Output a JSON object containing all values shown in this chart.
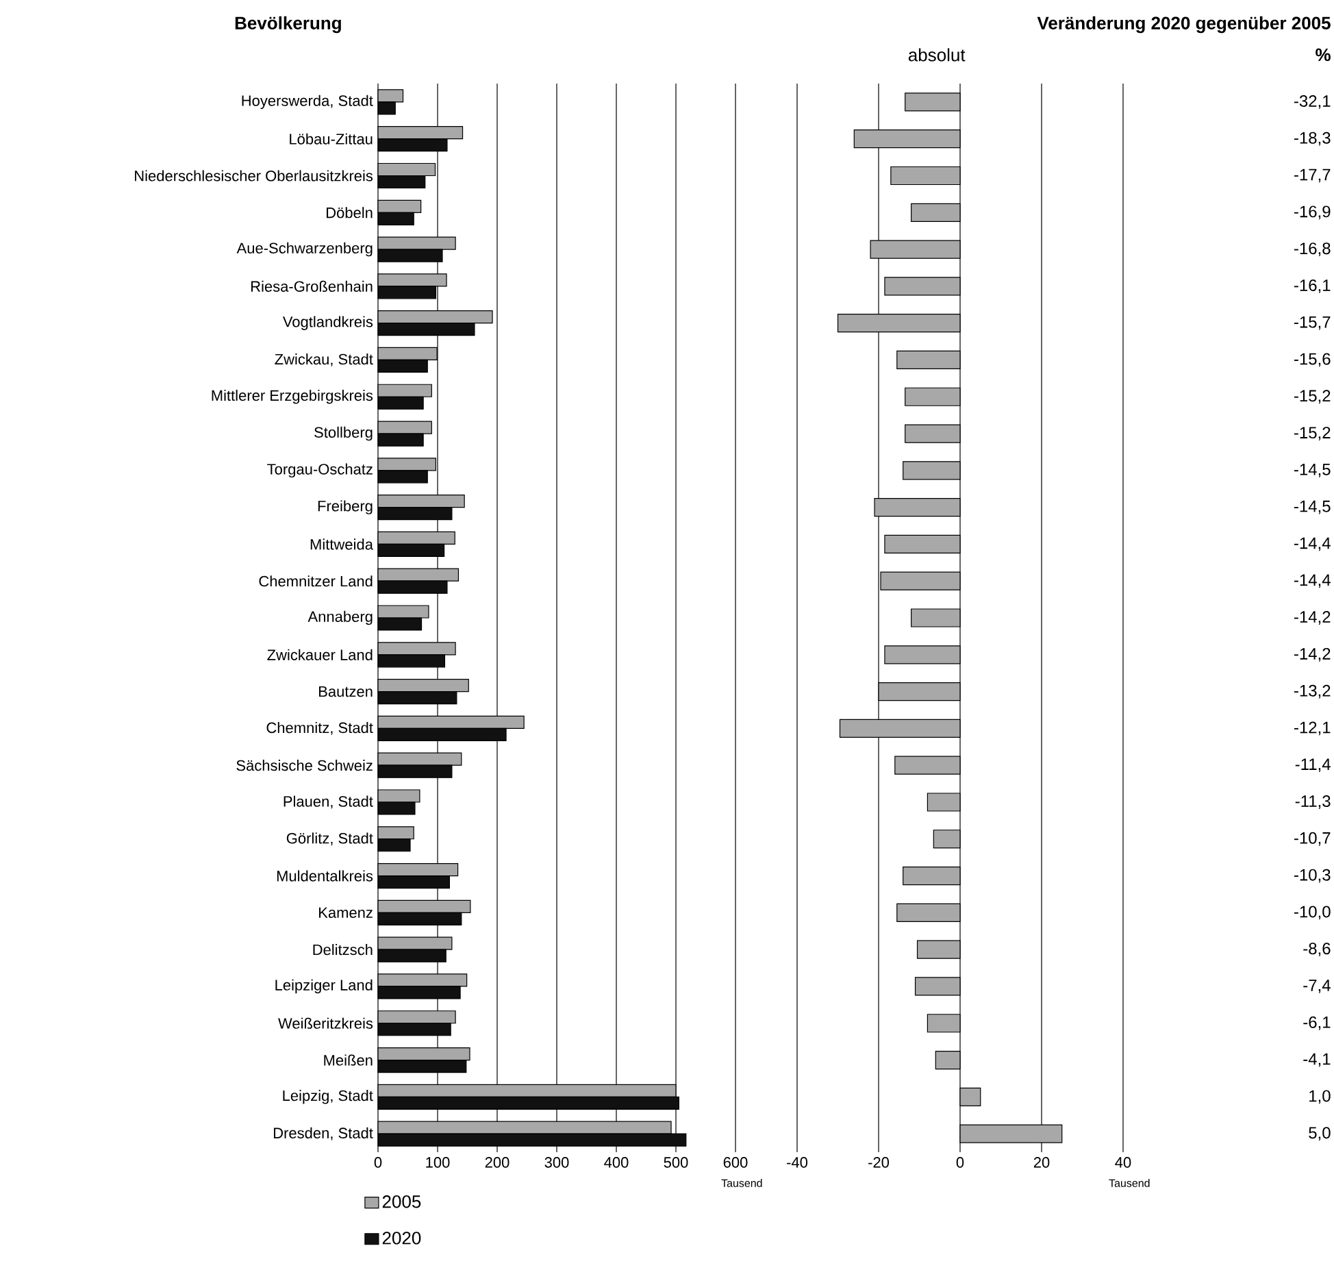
{
  "chart_data": [
    {
      "type": "bar",
      "orientation": "horizontal",
      "title": "Bevölkerung",
      "xlabel": "Tausend",
      "categories": [
        "Hoyerswerda, Stadt",
        "Löbau-Zittau",
        "Niederschlesischer Oberlausitzkreis",
        "Döbeln",
        "Aue-Schwarzenberg",
        "Riesa-Großenhain",
        "Vogtlandkreis",
        "Zwickau, Stadt",
        "Mittlerer Erzgebirgskreis",
        "Stollberg",
        "Torgau-Oschatz",
        "Freiberg",
        "Mittweida",
        "Chemnitzer Land",
        "Annaberg",
        "Zwickauer Land",
        "Bautzen",
        "Chemnitz, Stadt",
        "Sächsische Schweiz",
        "Plauen, Stadt",
        "Görlitz, Stadt",
        "Muldentalkreis",
        "Kamenz",
        "Delitzsch",
        "Leipziger Land",
        "Weißeritzkreis",
        "Meißen",
        "Leipzig, Stadt",
        "Dresden, Stadt"
      ],
      "series": [
        {
          "name": "2005",
          "color": "#a8a8a8",
          "values": [
            42,
            142,
            96,
            72,
            130,
            115,
            192,
            99,
            90,
            90,
            97,
            145,
            129,
            135,
            85,
            130,
            152,
            245,
            140,
            70,
            60,
            134,
            155,
            124,
            149,
            130,
            154,
            500,
            492
          ]
        },
        {
          "name": "2020",
          "color": "#111111",
          "values": [
            29,
            116,
            79,
            60,
            108,
            97,
            162,
            83,
            76,
            76,
            83,
            124,
            111,
            116,
            73,
            112,
            132,
            215,
            124,
            62,
            54,
            120,
            140,
            114,
            138,
            122,
            148,
            505,
            517
          ]
        }
      ],
      "xlim": [
        0,
        600
      ],
      "xticks": [
        0,
        100,
        200,
        300,
        400,
        500,
        600
      ],
      "grid": "x",
      "legend": "bottom left"
    },
    {
      "type": "bar",
      "orientation": "horizontal",
      "title": "Veränderung 2020 gegenüber 2005",
      "subtitle": "absolut",
      "xlabel": "Tausend",
      "categories": [
        null,
        null,
        null,
        null,
        null,
        null,
        null,
        null,
        null,
        null,
        null,
        null,
        null,
        null,
        null,
        null,
        null,
        null,
        null,
        null,
        null,
        null,
        null,
        null,
        null,
        null,
        null,
        null,
        null
      ],
      "values": [
        -13.5,
        -26,
        -17,
        -12,
        -22,
        -18.5,
        -30,
        -15.5,
        -13.5,
        -13.5,
        -14,
        -21,
        -18.5,
        -19.5,
        -12,
        -18.5,
        -20,
        -29.5,
        -16,
        -8,
        -6.5,
        -14,
        -15.5,
        -10.5,
        -11,
        -8,
        -6,
        5,
        25
      ],
      "color": "#a8a8a8",
      "xlim": [
        -40,
        40
      ],
      "xticks": [
        -40,
        -20,
        0,
        20,
        40
      ],
      "grid": "x",
      "tick_labels": "x"
    },
    {
      "type": "other",
      "title": "%",
      "values": [
        -32.1,
        -18.3,
        -17.7,
        -16.9,
        -16.8,
        -16.1,
        -15.7,
        -15.6,
        -15.2,
        -15.2,
        -14.5,
        -14.5,
        -14.4,
        -14.4,
        -14.2,
        -14.2,
        -13.2,
        -12.1,
        -11.4,
        -11.3,
        -10.7,
        -10.3,
        -10.0,
        -8.6,
        -7.4,
        -6.1,
        -4.1,
        1.0,
        5.0
      ],
      "value_labels": [
        "-32,1",
        "-18,3",
        "-17,7",
        "-16,9",
        "-16,8",
        "-16,1",
        "-15,7",
        "-15,6",
        "-15,2",
        "-15,2",
        "-14,5",
        "-14,5",
        "-14,4",
        "-14,4",
        "-14,2",
        "-14,2",
        "-13,2",
        "-12,1",
        "-11,4",
        "-11,3",
        "-10,7",
        "-10,3",
        "-10,0",
        "-8,6",
        "-7,4",
        "-6,1",
        "-4,1",
        "1,0",
        "5,0"
      ]
    }
  ]
}
